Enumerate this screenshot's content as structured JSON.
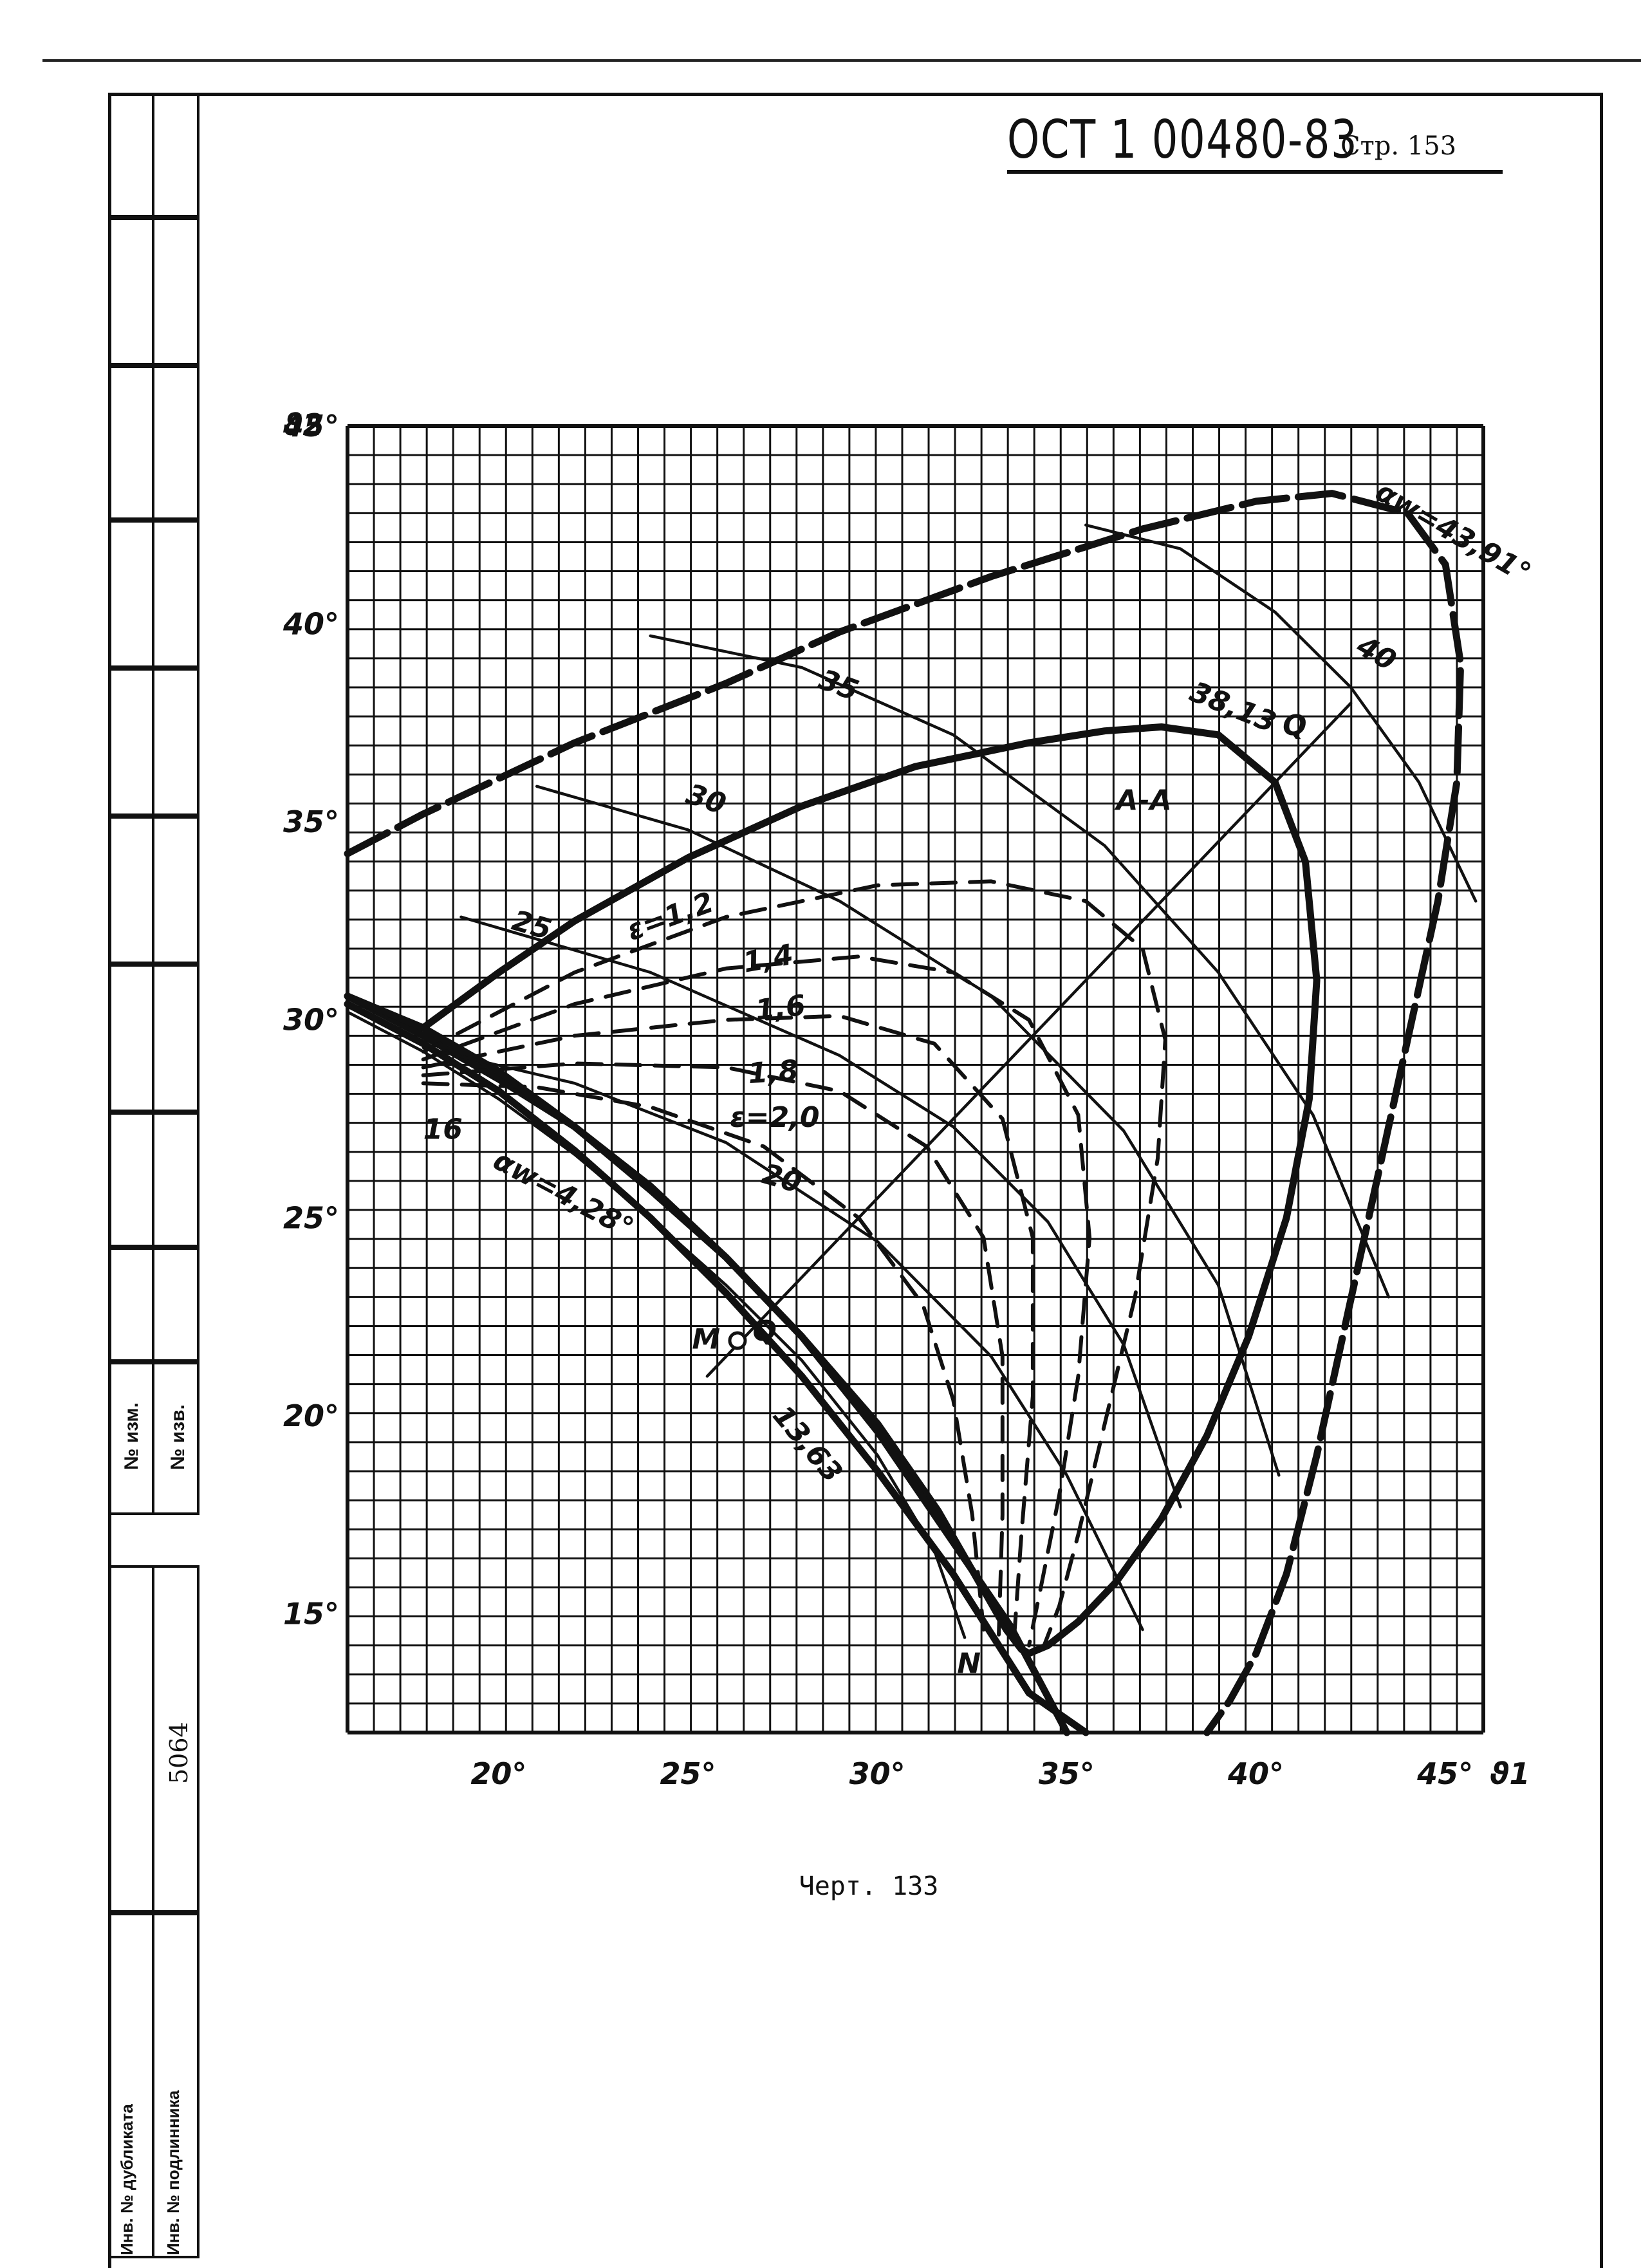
{
  "document": {
    "code": "ОСТ 1 00480-83",
    "page_label": "Стр. 153",
    "caption": "Черт. 133"
  },
  "stamp": {
    "izm": "№ изм.",
    "izv": "№ изв.",
    "number": "5064",
    "dublikat": "Инв. № дубликата",
    "podlinnik": "Инв. № подлинника"
  },
  "chart_data": {
    "type": "line",
    "xlabel": "ϑ1",
    "ylabel": "ϑ2",
    "xlim": [
      16,
      46
    ],
    "ylim": [
      12,
      45
    ],
    "x_ticks": [
      "20°",
      "25°",
      "30°",
      "35°",
      "40°",
      "45°"
    ],
    "y_ticks": [
      "15°",
      "20°",
      "25°",
      "30°",
      "35°",
      "40°",
      "45°"
    ],
    "grid": true,
    "annotations": [
      "αw=43,91°",
      "αw=4,28°",
      "38,13",
      "35",
      "30",
      "25",
      "20",
      "16",
      "40",
      "13,63",
      "ε=1,2",
      "1,4",
      "1,6",
      "1,8",
      "ε=2,0",
      "A-A",
      "Q",
      "M",
      "Q",
      "N"
    ],
    "series": [
      {
        "label": "αw=43,91°",
        "style": "thick-dashed",
        "x": [
          16,
          18,
          22,
          26,
          29,
          33,
          37,
          40,
          42,
          44,
          45,
          45.4,
          45.3,
          44.8,
          44,
          43.2,
          42.4,
          41.6,
          40.8,
          40,
          39.3,
          38.7
        ],
        "y": [
          34.2,
          35.2,
          37,
          38.5,
          39.8,
          41.2,
          42.4,
          43.1,
          43.3,
          42.8,
          41.5,
          39,
          36,
          33,
          29.5,
          26,
          22.5,
          19,
          16,
          14,
          12.8,
          12
        ]
      },
      {
        "label": "38,13",
        "style": "thick",
        "x": [
          18,
          20,
          22,
          25,
          28,
          31,
          34,
          36,
          37.5,
          39,
          40.5,
          41.3,
          41.6,
          41.4,
          40.8,
          39.8,
          38.7,
          37.5,
          36.3,
          35.3,
          34.5,
          34,
          33.8,
          33.4,
          32.8,
          31.6,
          30,
          28,
          26,
          24,
          22,
          20,
          18,
          16
        ],
        "y": [
          29.8,
          31.2,
          32.5,
          34.1,
          35.4,
          36.4,
          37,
          37.3,
          37.4,
          37.2,
          36,
          34,
          31,
          28,
          25,
          22,
          19.5,
          17.4,
          15.8,
          14.8,
          14.2,
          14,
          14.1,
          14.6,
          15.6,
          17.6,
          19.8,
          22,
          24,
          25.8,
          27.3,
          28.5,
          29.6,
          30.6
        ]
      },
      {
        "label": "ε=1,2",
        "style": "dashed",
        "x": [
          18,
          22,
          26,
          30,
          33,
          35.5,
          37,
          37.6,
          37.4,
          36.8,
          36,
          35.3,
          34.8,
          34.4
        ],
        "y": [
          29.2,
          31.2,
          32.6,
          33.4,
          33.5,
          33,
          31.8,
          29.5,
          26.5,
          23,
          19.8,
          17,
          15.2,
          14.2
        ]
      },
      {
        "label": "1,4",
        "style": "dashed",
        "x": [
          18,
          22,
          26,
          29.5,
          32,
          34,
          35.3,
          35.6,
          35.3,
          34.8,
          34.3,
          34
        ],
        "y": [
          29,
          30.4,
          31.3,
          31.6,
          31.2,
          30,
          27.6,
          24.5,
          21,
          18,
          15.6,
          14.2
        ]
      },
      {
        "label": "1,6",
        "style": "dashed",
        "x": [
          18,
          22,
          26,
          29,
          31.5,
          33.3,
          34.1,
          34.1,
          33.8,
          33.6
        ],
        "y": [
          28.8,
          29.6,
          30,
          30.1,
          29.4,
          27.5,
          24.5,
          20.5,
          17,
          14.3
        ]
      },
      {
        "label": "1,8",
        "style": "dashed",
        "x": [
          18,
          22,
          26,
          29,
          31.3,
          32.8,
          33.3,
          33.3,
          33.2
        ],
        "y": [
          28.6,
          28.9,
          28.8,
          28.2,
          26.8,
          24.5,
          21.5,
          17.5,
          14.4
        ]
      },
      {
        "label": "ε=2,0",
        "style": "dashed",
        "x": [
          18,
          21,
          24,
          27,
          29.5,
          31.2,
          32,
          32.5,
          32.8
        ],
        "y": [
          28.4,
          28.3,
          27.8,
          26.8,
          25,
          22.8,
          20.4,
          17.5,
          14.6
        ]
      },
      {
        "label": "αw=4,28°",
        "style": "thick",
        "x": [
          16,
          18,
          20,
          22,
          24,
          26,
          28,
          30,
          32,
          33.5,
          35
        ],
        "y": [
          30.6,
          29.8,
          28.7,
          27.3,
          25.7,
          24,
          22,
          19.6,
          16.8,
          14.7,
          12
        ]
      },
      {
        "label": "13,63",
        "style": "thick",
        "x": [
          16,
          18,
          20,
          22,
          24,
          26,
          28,
          30,
          32,
          34,
          35.5
        ],
        "y": [
          30.4,
          29.4,
          28.2,
          26.7,
          25,
          23.1,
          21,
          18.6,
          16,
          13,
          12
        ]
      },
      {
        "label": "16",
        "style": "thin",
        "x": [
          16,
          18,
          20,
          22,
          24,
          26,
          28,
          30,
          31.5,
          32.3
        ],
        "y": [
          30.2,
          29.2,
          28,
          26.6,
          25,
          23.3,
          21.4,
          19,
          16.6,
          14.4
        ]
      },
      {
        "label": "20",
        "style": "thin",
        "x": [
          18,
          22,
          26,
          30,
          33,
          35,
          37
        ],
        "y": [
          29.3,
          28.4,
          26.9,
          24.4,
          21.5,
          18.5,
          14.6
        ]
      },
      {
        "label": "25",
        "style": "thin",
        "x": [
          19,
          24,
          29,
          32,
          34.5,
          36.5,
          38
        ],
        "y": [
          32.6,
          31.2,
          29.1,
          27.3,
          24.9,
          21.8,
          17.7
        ]
      },
      {
        "label": "30",
        "style": "thin",
        "x": [
          21,
          25,
          29,
          33,
          36.5,
          39,
          40.6
        ],
        "y": [
          35.9,
          34.8,
          33,
          30.6,
          27.2,
          23.3,
          18.5
        ]
      },
      {
        "label": "35",
        "style": "thin",
        "x": [
          24,
          28,
          32,
          36,
          39,
          41.5,
          43.5
        ],
        "y": [
          39.7,
          38.9,
          37.2,
          34.4,
          31.2,
          27.6,
          23
        ]
      },
      {
        "label": "40",
        "style": "thin",
        "x": [
          35.5,
          38,
          40.5,
          42.5,
          44.3,
          45.8
        ],
        "y": [
          42.5,
          41.9,
          40.3,
          38.4,
          36,
          33
        ]
      },
      {
        "label": "A-A",
        "style": "thin",
        "x": [
          25.5,
          42.5
        ],
        "y": [
          21,
          38
        ]
      }
    ]
  }
}
